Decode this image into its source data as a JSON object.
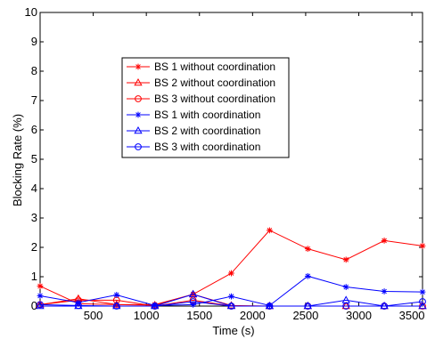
{
  "chart_data": {
    "type": "line",
    "title": "",
    "xlabel": "Time (s)",
    "ylabel": "Blocking Rate (%)",
    "xlim": [
      0,
      3600
    ],
    "ylim": [
      0,
      10
    ],
    "x_ticks": [
      500,
      1000,
      1500,
      2000,
      2500,
      3000,
      3500
    ],
    "y_ticks": [
      0,
      1,
      2,
      3,
      4,
      5,
      6,
      7,
      8,
      9,
      10
    ],
    "grid": false,
    "legend_position": "top-right",
    "x": [
      0,
      360,
      720,
      1080,
      1440,
      1800,
      2160,
      2520,
      2880,
      3240,
      3600
    ],
    "series": [
      {
        "name": "BS 1 without coordination",
        "color": "#ff0000",
        "marker": "star",
        "values": [
          0.68,
          0.08,
          0.05,
          0.05,
          0.4,
          1.12,
          2.58,
          1.95,
          1.58,
          2.23,
          2.05
        ]
      },
      {
        "name": "BS 2 without coordination",
        "color": "#ff0000",
        "marker": "triangle",
        "values": [
          0.05,
          0.25,
          0.05,
          0.03,
          0.4,
          0.02,
          0.0,
          0.0,
          0.0,
          0.0,
          0.0
        ]
      },
      {
        "name": "BS 3 without coordination",
        "color": "#ff0000",
        "marker": "circle",
        "values": [
          0.05,
          0.2,
          0.2,
          0.0,
          0.2,
          0.0,
          0.0,
          0.0,
          0.0,
          0.0,
          0.0
        ]
      },
      {
        "name": "BS 1 with coordination",
        "color": "#0000ff",
        "marker": "star",
        "values": [
          0.35,
          0.12,
          0.38,
          0.02,
          0.05,
          0.33,
          0.02,
          1.02,
          0.65,
          0.5,
          0.48
        ]
      },
      {
        "name": "BS 2 with coordination",
        "color": "#0000ff",
        "marker": "triangle",
        "values": [
          0.0,
          0.0,
          0.0,
          0.0,
          0.4,
          0.0,
          0.0,
          0.0,
          0.2,
          0.0,
          0.0
        ]
      },
      {
        "name": "BS 3 with coordination",
        "color": "#0000ff",
        "marker": "circle",
        "values": [
          0.05,
          0.02,
          0.0,
          0.0,
          0.15,
          0.0,
          0.0,
          0.0,
          0.0,
          0.0,
          0.15
        ]
      }
    ]
  }
}
